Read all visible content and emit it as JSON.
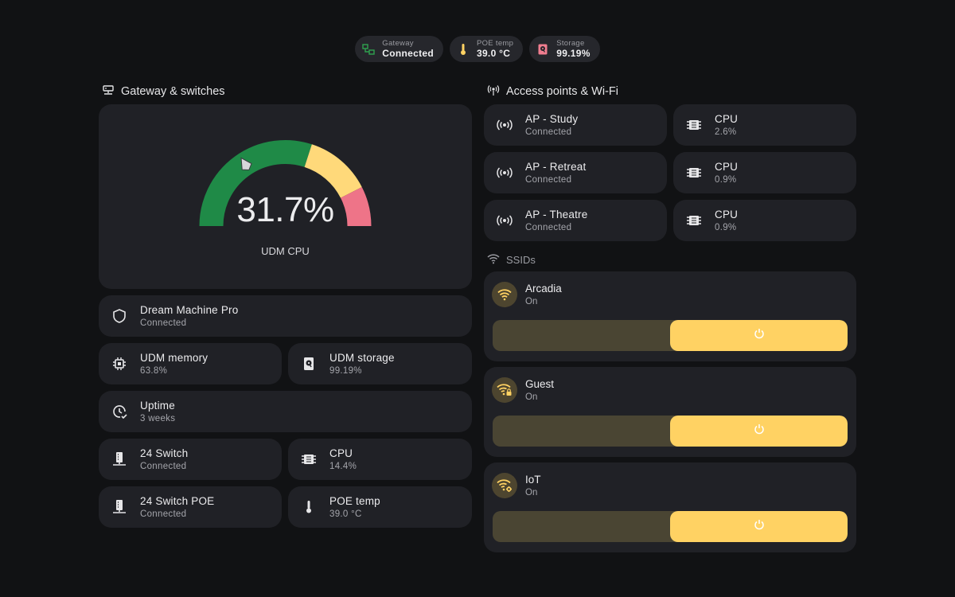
{
  "badges": [
    {
      "label": "Gateway",
      "value": "Connected",
      "icon": "gateway-icon",
      "color": "#2fa24f"
    },
    {
      "label": "POE temp",
      "value": "39.0 °C",
      "icon": "thermometer-icon",
      "color": "#ffd263"
    },
    {
      "label": "Storage",
      "value": "99.19%",
      "icon": "harddisk-icon",
      "color": "#f07d8f"
    }
  ],
  "left": {
    "title": "Gateway & switches",
    "gauge": {
      "value_text": "31.7%",
      "value": 31.7,
      "label": "UDM CPU",
      "colors": {
        "green": "#1f8a47",
        "yellow": "#ffd97a",
        "red": "#ee7488"
      }
    },
    "tiles": {
      "dream": {
        "name": "Dream Machine Pro",
        "state": "Connected"
      },
      "memory": {
        "name": "UDM memory",
        "state": "63.8%"
      },
      "storage": {
        "name": "UDM storage",
        "state": "99.19%"
      },
      "uptime": {
        "name": "Uptime",
        "state": "3 weeks"
      },
      "switch24": {
        "name": "24 Switch",
        "state": "Connected"
      },
      "cpu": {
        "name": "CPU",
        "state": "14.4%"
      },
      "switch24poe": {
        "name": "24 Switch POE",
        "state": "Connected"
      },
      "poetemp": {
        "name": "POE temp",
        "state": "39.0 °C"
      }
    }
  },
  "right": {
    "title": "Access points & Wi-Fi",
    "aps": [
      {
        "name": "AP - Study",
        "state": "Connected",
        "cpu_name": "CPU",
        "cpu": "2.6%"
      },
      {
        "name": "AP - Retreat",
        "state": "Connected",
        "cpu_name": "CPU",
        "cpu": "0.9%"
      },
      {
        "name": "AP - Theatre",
        "state": "Connected",
        "cpu_name": "CPU",
        "cpu": "0.9%"
      }
    ],
    "ssids_title": "SSIDs",
    "ssids": [
      {
        "name": "Arcadia",
        "state": "On",
        "icon": "wifi-icon"
      },
      {
        "name": "Guest",
        "state": "On",
        "icon": "wifi-lock-icon"
      },
      {
        "name": "IoT",
        "state": "On",
        "icon": "wifi-cog-icon"
      }
    ]
  }
}
